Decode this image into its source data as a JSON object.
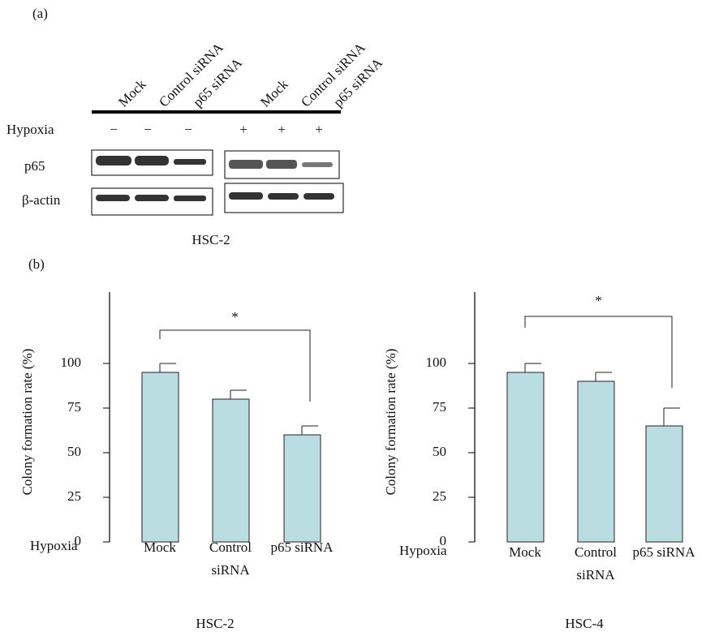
{
  "panel_a": {
    "label": "(a)",
    "lanes": [
      "Mock",
      "Control siRNA",
      "p65 siRNA",
      "Mock",
      "Control siRNA",
      "p65 siRNA"
    ],
    "row_label": "Hypoxia",
    "hypoxia": [
      "−",
      "−",
      "−",
      "+",
      "+",
      "+"
    ],
    "blots": [
      "p65",
      "β-actin"
    ],
    "cell_line": "HSC-2"
  },
  "panel_b": {
    "label": "(b)"
  },
  "chart_data": [
    {
      "type": "bar",
      "ylabel": "Colony formation rate (%)",
      "row_label": "Hypoxia",
      "xlabel": "HSC-2",
      "categories": [
        "Mock",
        "Control siRNA",
        "p65 siRNA"
      ],
      "values": [
        95,
        80,
        60
      ],
      "errors": [
        5,
        5,
        5
      ],
      "color": "#b9dde0",
      "ylim": [
        0,
        140
      ],
      "yticks": [
        0,
        25,
        50,
        75,
        100
      ],
      "significance": "*"
    },
    {
      "type": "bar",
      "ylabel": "Colony formation rate (%)",
      "row_label": "Hypoxia",
      "xlabel": "HSC-4",
      "categories": [
        "Mock",
        "Control siRNA",
        "p65 siRNA"
      ],
      "values": [
        95,
        90,
        65
      ],
      "errors": [
        5,
        5,
        10
      ],
      "color": "#b9dde0",
      "ylim": [
        0,
        140
      ],
      "yticks": [
        0,
        25,
        50,
        75,
        100
      ],
      "significance": "*"
    }
  ]
}
